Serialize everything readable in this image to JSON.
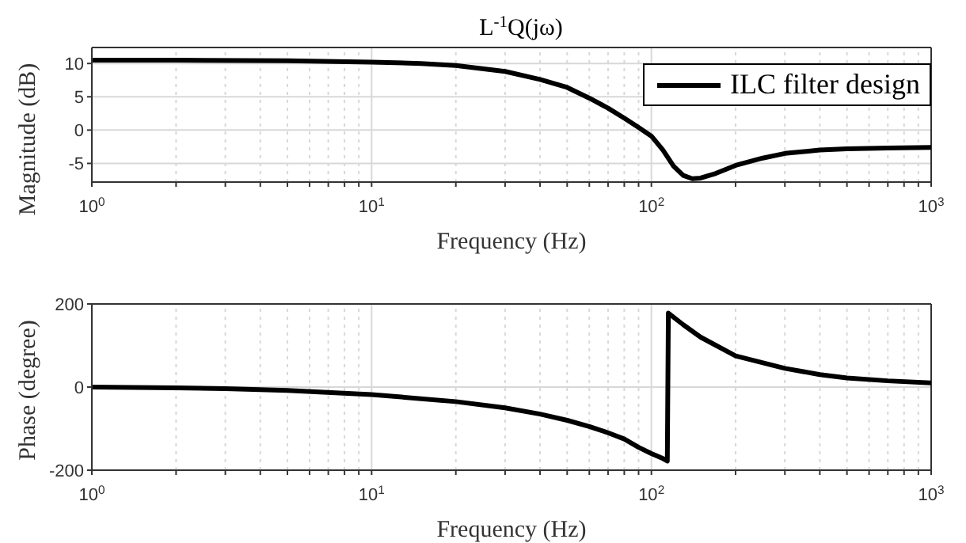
{
  "chart_data": [
    {
      "type": "line",
      "title": "L$^{-1}$Q(jω)",
      "xlabel": "Frequency (Hz)",
      "ylabel": "Magnitude (dB)",
      "log": "x",
      "grid": true,
      "legend": "top right",
      "line_style": "solid",
      "marker": "none",
      "xlim": [
        1,
        1000
      ],
      "xticks": [
        {
          "value": 1,
          "label": "10$^{0}$"
        },
        {
          "value": 2,
          "label": null
        },
        {
          "value": 3,
          "label": null
        },
        {
          "value": 4,
          "label": null
        },
        {
          "value": 5,
          "label": null
        },
        {
          "value": 6,
          "label": null
        },
        {
          "value": 7,
          "label": null
        },
        {
          "value": 8,
          "label": null
        },
        {
          "value": 9,
          "label": null
        },
        {
          "value": 10,
          "label": "10$^{1}$"
        },
        {
          "value": 20,
          "label": null
        },
        {
          "value": 30,
          "label": null
        },
        {
          "value": 40,
          "label": null
        },
        {
          "value": 50,
          "label": null
        },
        {
          "value": 60,
          "label": null
        },
        {
          "value": 70,
          "label": null
        },
        {
          "value": 80,
          "label": null
        },
        {
          "value": 90,
          "label": null
        },
        {
          "value": 100,
          "label": "10$^{2}$"
        },
        {
          "value": 200,
          "label": null
        },
        {
          "value": 300,
          "label": null
        },
        {
          "value": 400,
          "label": null
        },
        {
          "value": 500,
          "label": null
        },
        {
          "value": 600,
          "label": null
        },
        {
          "value": 700,
          "label": null
        },
        {
          "value": 800,
          "label": null
        },
        {
          "value": 900,
          "label": null
        },
        {
          "value": 1000,
          "label": "10$^{3}$"
        }
      ],
      "ylim": [
        -7.8,
        12.4
      ],
      "yticks": [
        -5,
        0,
        5,
        10
      ],
      "series": [
        {
          "name": "ILC filter design",
          "color": "#000000",
          "x": [
            1,
            2,
            5,
            10,
            15,
            20,
            30,
            40,
            50,
            60,
            70,
            80,
            90,
            100,
            110,
            120,
            130,
            140,
            150,
            170,
            200,
            250,
            300,
            400,
            500,
            700,
            1000
          ],
          "values": [
            10.5,
            10.5,
            10.4,
            10.2,
            10.0,
            9.7,
            8.8,
            7.6,
            6.4,
            4.8,
            3.3,
            1.8,
            0.4,
            -0.9,
            -3.0,
            -5.4,
            -6.8,
            -7.3,
            -7.2,
            -6.5,
            -5.3,
            -4.2,
            -3.5,
            -3.0,
            -2.8,
            -2.7,
            -2.6
          ]
        }
      ]
    },
    {
      "type": "line",
      "xlabel": "Frequency (Hz)",
      "ylabel": "Phase (degree)",
      "log": "x",
      "grid": true,
      "line_style": "solid",
      "marker": "none",
      "xlim": [
        1,
        1000
      ],
      "xticks": [
        {
          "value": 1,
          "label": "10$^{0}$"
        },
        {
          "value": 2,
          "label": null
        },
        {
          "value": 3,
          "label": null
        },
        {
          "value": 4,
          "label": null
        },
        {
          "value": 5,
          "label": null
        },
        {
          "value": 6,
          "label": null
        },
        {
          "value": 7,
          "label": null
        },
        {
          "value": 8,
          "label": null
        },
        {
          "value": 9,
          "label": null
        },
        {
          "value": 10,
          "label": "10$^{1}$"
        },
        {
          "value": 20,
          "label": null
        },
        {
          "value": 30,
          "label": null
        },
        {
          "value": 40,
          "label": null
        },
        {
          "value": 50,
          "label": null
        },
        {
          "value": 60,
          "label": null
        },
        {
          "value": 70,
          "label": null
        },
        {
          "value": 80,
          "label": null
        },
        {
          "value": 90,
          "label": null
        },
        {
          "value": 100,
          "label": "10$^{2}$"
        },
        {
          "value": 200,
          "label": null
        },
        {
          "value": 300,
          "label": null
        },
        {
          "value": 400,
          "label": null
        },
        {
          "value": 500,
          "label": null
        },
        {
          "value": 600,
          "label": null
        },
        {
          "value": 700,
          "label": null
        },
        {
          "value": 800,
          "label": null
        },
        {
          "value": 900,
          "label": null
        },
        {
          "value": 1000,
          "label": "10$^{3}$"
        }
      ],
      "ylim": [
        -200,
        200
      ],
      "yticks": [
        -200,
        0,
        200
      ],
      "series": [
        {
          "color": "#000000",
          "x": [
            1,
            2,
            3,
            5,
            10,
            20,
            30,
            40,
            50,
            60,
            70,
            80,
            90,
            100,
            110,
            114,
            115,
            130,
            150,
            200,
            300,
            400,
            500,
            700,
            1000
          ],
          "values": [
            0,
            -2,
            -4,
            -8,
            -18,
            -35,
            -50,
            -65,
            -80,
            -95,
            -110,
            -125,
            -145,
            -160,
            -172,
            -178,
            178,
            150,
            120,
            75,
            45,
            30,
            22,
            15,
            10
          ]
        }
      ]
    }
  ]
}
